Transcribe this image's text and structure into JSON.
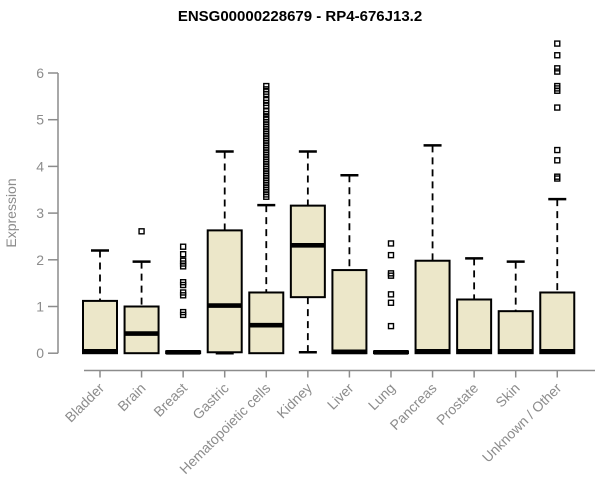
{
  "title": "ENSG00000228679 - RP4-676J13.2",
  "chart_data": {
    "type": "boxplot",
    "title": "ENSG00000228679 - RP4-676J13.2",
    "ylabel": "Expression",
    "xlabel": "",
    "ylim": [
      0,
      6.7
    ],
    "yticks": [
      0,
      1,
      2,
      3,
      4,
      5,
      6
    ],
    "grid": false,
    "legend": "none",
    "box_fill": "#ECE7C9",
    "box_stroke": "#000000",
    "axis_color": "#8C8C8C",
    "categories": [
      "Bladder",
      "Brain",
      "Breast",
      "Gastric",
      "Hematopoietic cells",
      "Kidney",
      "Liver",
      "Lung",
      "Pancreas",
      "Prostate",
      "Skin",
      "Unknown / Other"
    ],
    "series": [
      {
        "name": "Bladder",
        "whisker_low": 0,
        "q1": 0,
        "median": 0.04,
        "q3": 1.12,
        "whisker_high": 2.2,
        "outliers": []
      },
      {
        "name": "Brain",
        "whisker_low": 0,
        "q1": 0,
        "median": 0.42,
        "q3": 1.0,
        "whisker_high": 1.96,
        "outliers": [
          2.61
        ]
      },
      {
        "name": "Breast",
        "whisker_low": 0,
        "q1": 0,
        "median": 0.02,
        "q3": 0.04,
        "whisker_high": 0.04,
        "outliers": [
          0.82,
          0.88,
          1.24,
          1.3,
          1.46,
          1.52,
          1.86,
          1.92,
          1.98,
          2.12,
          2.28
        ]
      },
      {
        "name": "Gastric",
        "whisker_low": 0,
        "q1": 0.02,
        "median": 1.02,
        "q3": 2.63,
        "whisker_high": 4.32,
        "outliers": []
      },
      {
        "name": "Hematopoietic cells",
        "whisker_low": 0,
        "q1": 0,
        "median": 0.6,
        "q3": 1.3,
        "whisker_high": 3.17,
        "outliers": [
          3.35,
          3.4,
          3.45,
          3.5,
          3.55,
          3.6,
          3.65,
          3.7,
          3.75,
          3.8,
          3.85,
          3.9,
          3.95,
          4.0,
          4.05,
          4.1,
          4.15,
          4.2,
          4.25,
          4.3,
          4.35,
          4.4,
          4.45,
          4.5,
          4.55,
          4.6,
          4.65,
          4.7,
          4.75,
          4.8,
          4.85,
          4.9,
          4.95,
          5.0,
          5.05,
          5.12,
          5.18,
          5.3,
          5.36,
          5.42,
          5.55,
          5.6,
          5.65,
          5.72
        ]
      },
      {
        "name": "Kidney",
        "whisker_low": 0.02,
        "q1": 1.2,
        "median": 2.31,
        "q3": 3.16,
        "whisker_high": 4.32,
        "outliers": []
      },
      {
        "name": "Liver",
        "whisker_low": 0,
        "q1": 0,
        "median": 0.03,
        "q3": 1.78,
        "whisker_high": 3.81,
        "outliers": []
      },
      {
        "name": "Lung",
        "whisker_low": 0,
        "q1": 0,
        "median": 0.02,
        "q3": 0.04,
        "whisker_high": 0.04,
        "outliers": [
          0.58,
          1.08,
          1.26,
          1.66,
          1.71,
          2.1,
          2.35
        ]
      },
      {
        "name": "Pancreas",
        "whisker_low": 0,
        "q1": 0,
        "median": 0.04,
        "q3": 1.98,
        "whisker_high": 4.45,
        "outliers": []
      },
      {
        "name": "Prostate",
        "whisker_low": 0,
        "q1": 0,
        "median": 0.04,
        "q3": 1.15,
        "whisker_high": 2.03,
        "outliers": []
      },
      {
        "name": "Skin",
        "whisker_low": 0,
        "q1": 0,
        "median": 0.04,
        "q3": 0.9,
        "whisker_high": 1.96,
        "outliers": []
      },
      {
        "name": "Unknown / Other",
        "whisker_low": 0,
        "q1": 0,
        "median": 0.04,
        "q3": 1.3,
        "whisker_high": 3.3,
        "outliers": [
          3.74,
          3.78,
          4.13,
          4.35,
          5.26,
          5.62,
          5.67,
          5.72,
          6.03,
          6.1,
          6.38,
          6.63
        ]
      }
    ]
  }
}
